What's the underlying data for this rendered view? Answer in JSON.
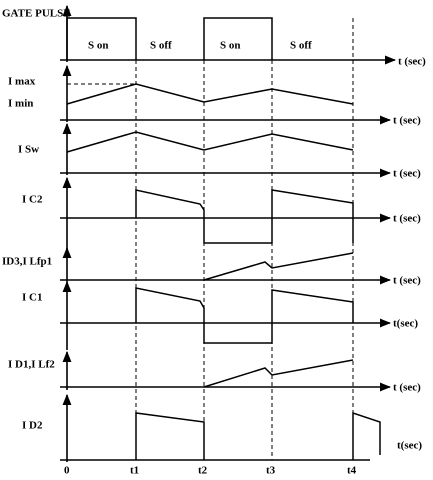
{
  "panels": [
    {
      "label": "GATE PULSE",
      "phases": [
        "S on",
        "S  off",
        "S on",
        "S off"
      ],
      "axis_label": "t (sec)"
    },
    {
      "label": "I max",
      "label2": "I min",
      "axis_label": "t (sec)"
    },
    {
      "label": "I Sw",
      "axis_label": "t (sec)"
    },
    {
      "label": "I C2",
      "axis_label": "t (sec)"
    },
    {
      "label": "ID3,I Lfp1",
      "axis_label": "t (sec)"
    },
    {
      "label": "I C1",
      "axis_label": "t(sec)"
    },
    {
      "label": "I D1,I Lf2",
      "axis_label": "t (sec)"
    },
    {
      "label": "I D2",
      "axis_label": "t(sec)"
    }
  ],
  "time_labels": [
    "0",
    "t1",
    "t2",
    "t3",
    "t4"
  ]
}
